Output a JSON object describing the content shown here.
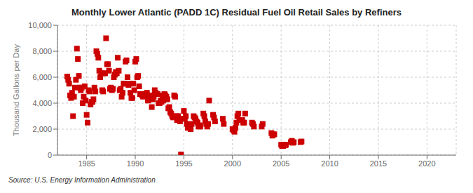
{
  "chart_data": {
    "type": "scatter",
    "title": "Monthly Lower Atlantic (PADD 1C) Residual Fuel Oil Retail Sales by Refiners",
    "y_label": "Thousand Gallons per Day",
    "annotations": [
      "Source: U.S. Energy Information Administration"
    ],
    "color": "#cc0000",
    "marker": "square",
    "grid": true,
    "xlim": [
      1982,
      2023
    ],
    "xticks": [
      1985,
      1990,
      1995,
      2000,
      2005,
      2010,
      2015,
      2020
    ],
    "ylim": [
      0,
      10000
    ],
    "yticks": [
      0,
      {
        "value": 2000,
        "label": "2,000"
      },
      {
        "value": 4000,
        "label": "4,000"
      },
      {
        "value": 6000,
        "label": "6,000"
      },
      {
        "value": 8000,
        "label": "8,000"
      },
      {
        "value": 10000,
        "label": "10,000"
      }
    ],
    "x": [
      1983.0,
      1983.1,
      1983.2,
      1983.3,
      1983.4,
      1983.5,
      1983.6,
      1983.7,
      1983.8,
      1983.9,
      1984.0,
      1984.1,
      1984.2,
      1984.3,
      1984.4,
      1984.5,
      1984.6,
      1984.7,
      1984.8,
      1984.9,
      1985.0,
      1985.1,
      1985.2,
      1985.3,
      1985.4,
      1985.5,
      1985.6,
      1985.7,
      1985.8,
      1985.9,
      1986.0,
      1986.1,
      1986.2,
      1986.3,
      1986.4,
      1986.5,
      1986.6,
      1986.7,
      1986.8,
      1986.9,
      1987.0,
      1987.1,
      1987.2,
      1987.3,
      1987.4,
      1987.5,
      1987.6,
      1987.7,
      1987.8,
      1987.9,
      1988.0,
      1988.1,
      1988.2,
      1988.3,
      1988.4,
      1988.5,
      1988.6,
      1988.7,
      1988.8,
      1988.9,
      1989.0,
      1989.1,
      1989.2,
      1989.3,
      1989.4,
      1989.5,
      1989.6,
      1989.7,
      1989.8,
      1989.9,
      1990.0,
      1990.1,
      1990.2,
      1990.3,
      1990.4,
      1990.5,
      1990.6,
      1990.7,
      1990.8,
      1990.9,
      1991.0,
      1991.1,
      1991.2,
      1991.3,
      1991.4,
      1991.5,
      1991.6,
      1991.7,
      1991.8,
      1991.9,
      1992.0,
      1992.1,
      1992.2,
      1992.3,
      1992.4,
      1992.5,
      1992.6,
      1992.7,
      1992.8,
      1992.9,
      1993.0,
      1993.1,
      1993.2,
      1993.3,
      1993.4,
      1993.5,
      1993.6,
      1993.7,
      1993.8,
      1993.9,
      1994.0,
      1994.1,
      1994.2,
      1994.3,
      1994.4,
      1994.5,
      1994.6,
      1994.7,
      1994.8,
      1995.0,
      1995.1,
      1995.2,
      1995.3,
      1995.4,
      1995.5,
      1995.6,
      1995.7,
      1995.8,
      1996.0,
      1996.1,
      1996.2,
      1996.3,
      1996.4,
      1996.5,
      1996.6,
      1996.7,
      1997.0,
      1997.1,
      1997.2,
      1997.3,
      1997.4,
      1997.5,
      1997.6,
      1998.0,
      1998.1,
      1998.2,
      1999.0,
      1999.1,
      2000.0,
      2000.1,
      2000.2,
      2000.3,
      2000.4,
      2000.5,
      2000.6,
      2000.7,
      2001.0,
      2001.1,
      2001.2,
      2001.3,
      2002.0,
      2002.1,
      2002.2,
      2003.0,
      2003.1,
      2004.0,
      2004.1,
      2004.2,
      2004.3,
      2005.0,
      2005.1,
      2005.2,
      2005.3,
      2005.4,
      2005.5,
      2006.0,
      2006.1,
      2006.2,
      2006.3,
      2007.0,
      2007.1
    ],
    "values": [
      6050,
      5800,
      5500,
      4600,
      4400,
      4800,
      3000,
      4500,
      5200,
      5800,
      8200,
      7400,
      6100,
      5200,
      5000,
      5200,
      4000,
      4500,
      5300,
      4200,
      3100,
      2500,
      5000,
      4900,
      3900,
      4100,
      4100,
      4300,
      5200,
      4900,
      8000,
      7800,
      7500,
      6500,
      6000,
      6300,
      5000,
      4900,
      6300,
      6300,
      9000,
      7000,
      7000,
      6500,
      5100,
      5200,
      5000,
      5100,
      6000,
      6200,
      6400,
      6300,
      7500,
      6500,
      5000,
      5100,
      4500,
      4800,
      5500,
      5500,
      7200,
      7300,
      6000,
      5400,
      5500,
      4800,
      4400,
      4400,
      5500,
      5000,
      7200,
      7400,
      6000,
      6100,
      5300,
      4700,
      4700,
      4600,
      4500,
      4600,
      4700,
      4600,
      4800,
      4200,
      4500,
      4300,
      4600,
      3700,
      4300,
      4500,
      5000,
      4800,
      4700,
      4700,
      4000,
      4000,
      4200,
      4100,
      4600,
      4200,
      4700,
      4600,
      4500,
      4300,
      3600,
      3700,
      3300,
      3200,
      3000,
      2900,
      4600,
      4500,
      3000,
      2700,
      3000,
      2700,
      2600,
      50,
      2800,
      3400,
      2800,
      3000,
      2400,
      2100,
      2200,
      2100,
      2000,
      2400,
      3000,
      2900,
      2800,
      2600,
      2500,
      2200,
      2300,
      2200,
      3200,
      3000,
      2600,
      2400,
      2200,
      2400,
      4200,
      3100,
      2900,
      2600,
      2800,
      2400,
      2000,
      1900,
      1800,
      2100,
      2500,
      3000,
      3200,
      2700,
      2700,
      2500,
      2500,
      3200,
      2500,
      2400,
      2200,
      2200,
      2400,
      1700,
      1500,
      1600,
      1600,
      800,
      700,
      700,
      800,
      750,
      800,
      1000,
      1100,
      950,
      1000,
      1000,
      1050
    ]
  }
}
